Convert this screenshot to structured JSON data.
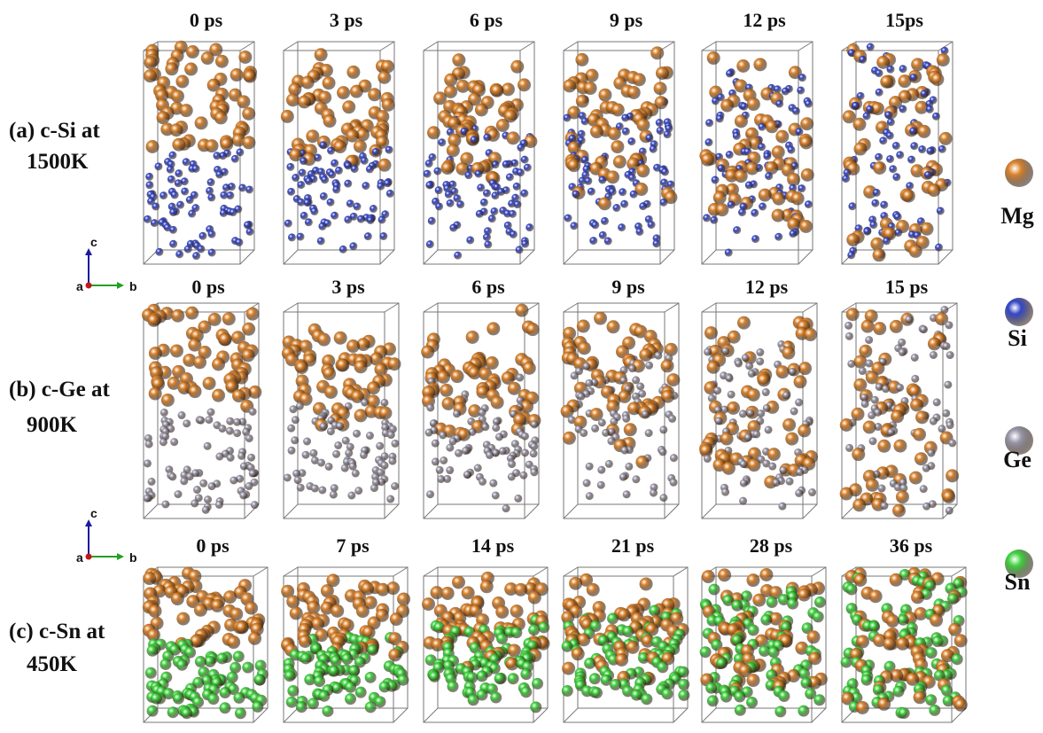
{
  "rows": [
    {
      "label": [
        "(a) c-Si at",
        "1500K"
      ],
      "times": [
        "0 ps",
        "3 ps",
        "6 ps",
        "9 ps",
        "12 ps",
        "15ps"
      ]
    },
    {
      "label": [
        "(b) c-Ge at",
        "900K"
      ],
      "times": [
        "0 ps",
        "3 ps",
        "6 ps",
        "9 ps",
        "12 ps",
        "15 ps"
      ]
    },
    {
      "label": [
        "(c) c-Sn at",
        "450K"
      ],
      "times": [
        "0 ps",
        "7 ps",
        "14 ps",
        "21 ps",
        "28 ps",
        "36 ps"
      ]
    }
  ],
  "axes_icons": [
    {
      "c": "c",
      "a": "a",
      "b": "b"
    },
    {
      "c": "c",
      "a": "a",
      "b": "b"
    }
  ],
  "legend": [
    {
      "label": "Mg",
      "color": "#d9822b"
    },
    {
      "label": "Si",
      "color": "#3346c8"
    },
    {
      "label": "Ge",
      "color": "#9a98aa"
    },
    {
      "label": "Sn",
      "color": "#3fd43f"
    }
  ]
}
